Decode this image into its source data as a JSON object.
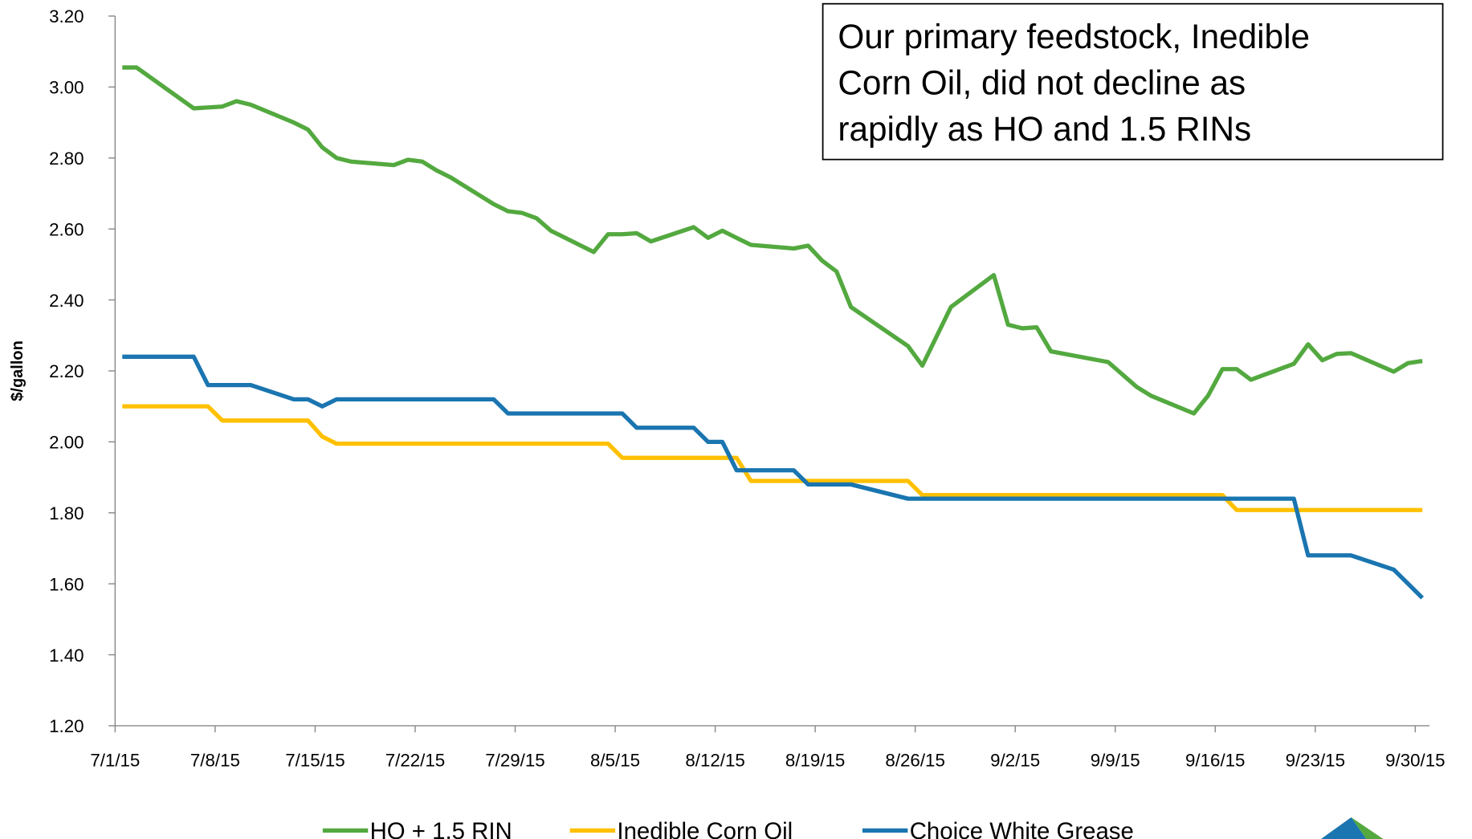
{
  "chart_data": {
    "type": "line",
    "y_label": "$/gallon",
    "annotation": [
      "Our primary feedstock, Inedible",
      "Corn Oil, did not decline as",
      "rapidly as HO and 1.5 RINs"
    ],
    "xlim": [
      "7/1/15",
      "10/1/15"
    ],
    "xticks": [
      "7/1/15",
      "7/8/15",
      "7/15/15",
      "7/22/15",
      "7/29/15",
      "8/5/15",
      "8/12/15",
      "8/19/15",
      "8/26/15",
      "9/2/15",
      "9/9/15",
      "9/16/15",
      "9/23/15",
      "9/30/15"
    ],
    "ylim": [
      1.2,
      3.2
    ],
    "yticks": [
      {
        "value": 1.2,
        "label": "1.20"
      },
      {
        "value": 1.4,
        "label": "1.40"
      },
      {
        "value": 1.6,
        "label": "1.60"
      },
      {
        "value": 1.8,
        "label": "1.80"
      },
      {
        "value": 2.0,
        "label": "2.00"
      },
      {
        "value": 2.2,
        "label": "2.20"
      },
      {
        "value": 2.4,
        "label": "2.40"
      },
      {
        "value": 2.6,
        "label": "2.60"
      },
      {
        "value": 2.8,
        "label": "2.80"
      },
      {
        "value": 3.0,
        "label": "3.00"
      },
      {
        "value": 3.2,
        "label": "3.20"
      }
    ],
    "series": [
      {
        "name": "HO + 1.5 RIN",
        "color": "#53a93f",
        "x": [
          "7/1/15",
          "7/2/15",
          "7/6/15",
          "7/8/15",
          "7/9/15",
          "7/10/15",
          "7/13/15",
          "7/14/15",
          "7/15/15",
          "7/16/15",
          "7/17/15",
          "7/20/15",
          "7/21/15",
          "7/22/15",
          "7/23/15",
          "7/24/15",
          "7/27/15",
          "7/28/15",
          "7/29/15",
          "7/30/15",
          "7/31/15",
          "8/3/15",
          "8/4/15",
          "8/5/15",
          "8/6/15",
          "8/7/15",
          "8/10/15",
          "8/11/15",
          "8/12/15",
          "8/13/15",
          "8/14/15",
          "8/17/15",
          "8/18/15",
          "8/19/15",
          "8/20/15",
          "8/21/15",
          "8/25/15",
          "8/26/15",
          "8/28/15",
          "8/31/15",
          "9/1/15",
          "9/2/15",
          "9/3/15",
          "9/4/15",
          "9/8/15",
          "9/9/15",
          "9/10/15",
          "9/11/15",
          "9/14/15",
          "9/15/15",
          "9/16/15",
          "9/17/15",
          "9/18/15",
          "9/21/15",
          "9/22/15",
          "9/23/15",
          "9/24/15",
          "9/25/15",
          "9/28/15",
          "9/29/15",
          "9/30/15"
        ],
        "values": [
          3.055,
          3.055,
          2.94,
          2.945,
          2.96,
          2.95,
          2.9,
          2.88,
          2.83,
          2.8,
          2.79,
          2.78,
          2.795,
          2.79,
          2.765,
          2.745,
          2.67,
          2.65,
          2.645,
          2.63,
          2.595,
          2.535,
          2.585,
          2.585,
          2.588,
          2.565,
          2.605,
          2.575,
          2.595,
          2.575,
          2.555,
          2.545,
          2.553,
          2.51,
          2.48,
          2.38,
          2.27,
          2.215,
          2.38,
          2.47,
          2.33,
          2.32,
          2.323,
          2.255,
          2.225,
          2.19,
          2.155,
          2.13,
          2.08,
          2.13,
          2.205,
          2.205,
          2.175,
          2.22,
          2.275,
          2.23,
          2.248,
          2.25,
          2.198,
          2.222,
          2.228
        ]
      },
      {
        "name": "Inedible Corn Oil",
        "color": "#ffc000",
        "x": [
          "7/1/15",
          "7/7/15",
          "7/8/15",
          "7/14/15",
          "7/15/15",
          "7/16/15",
          "8/4/15",
          "8/5/15",
          "8/13/15",
          "8/14/15",
          "8/25/15",
          "8/26/15",
          "9/16/15",
          "9/17/15",
          "9/30/15"
        ],
        "values": [
          2.1,
          2.1,
          2.06,
          2.06,
          2.015,
          1.995,
          1.995,
          1.955,
          1.955,
          1.89,
          1.89,
          1.85,
          1.85,
          1.808,
          1.808
        ]
      },
      {
        "name": "Choice White Grease",
        "color": "#1a75b0",
        "x": [
          "7/1/15",
          "7/6/15",
          "7/7/15",
          "7/10/15",
          "7/13/15",
          "7/14/15",
          "7/15/15",
          "7/16/15",
          "7/27/15",
          "7/28/15",
          "8/5/15",
          "8/6/15",
          "8/10/15",
          "8/11/15",
          "8/12/15",
          "8/13/15",
          "8/17/15",
          "8/18/15",
          "8/21/15",
          "8/25/15",
          "9/21/15",
          "9/22/15",
          "9/25/15",
          "9/28/15",
          "9/29/15",
          "9/30/15"
        ],
        "values": [
          2.24,
          2.24,
          2.16,
          2.16,
          2.12,
          2.12,
          2.1,
          2.12,
          2.12,
          2.08,
          2.08,
          2.04,
          2.04,
          2.0,
          2.0,
          1.92,
          1.92,
          1.88,
          1.88,
          1.84,
          1.84,
          1.68,
          1.68,
          1.64,
          1.6,
          1.56
        ]
      }
    ]
  }
}
